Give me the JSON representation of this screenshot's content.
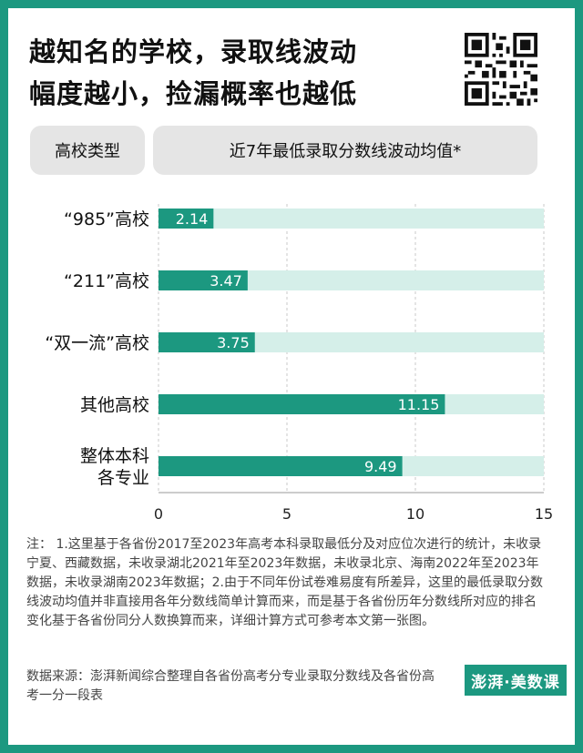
{
  "title_lines": [
    "越知名的学校，录取线波动",
    "幅度越小，捡漏概率也越低"
  ],
  "header": {
    "type_label": "高校类型",
    "metric_label": "近7年最低录取分数线波动均值*"
  },
  "colors": {
    "accent": "#1c9880",
    "track": "#d5efe9",
    "header_bg": "#e5e5e5"
  },
  "chart_data": {
    "type": "bar",
    "orientation": "horizontal",
    "categories": [
      "“985”高校",
      "“211”高校",
      "“双一流”高校",
      "其他高校",
      "整体本科\n各专业"
    ],
    "values": [
      2.14,
      3.47,
      3.75,
      11.15,
      9.49
    ],
    "value_labels": [
      "2.14",
      "3.47",
      "3.75",
      "11.15",
      "9.49"
    ],
    "xlim": [
      0,
      15
    ],
    "xticks": [
      0,
      5,
      10,
      15
    ],
    "xtick_labels": [
      "0",
      "5",
      "10",
      "15"
    ],
    "grid": true,
    "title": "",
    "xlabel": "",
    "ylabel": ""
  },
  "notes": "注： 1.这里基于各省份2017至2023年高考本科录取最低分及对应位次进行的统计，未收录宁夏、西藏数据，未收录湖北2021年至2023年数据，未收录北京、海南2022年至2023年数据，未收录湖南2023年数据；2.由于不同年份试卷难易度有所差异，这里的最低录取分数线波动均值并非直接用各年分数线简单计算而来，而是基于各省份历年分数线所对应的排名变化基于各省份同分人数换算而来，详细计算方式可参考本文第一张图。",
  "source": "数据来源：澎湃新闻综合整理自各省份高考分专业录取分数线及各省份高考一分一段表",
  "logo_text": "澎湃·美数课"
}
